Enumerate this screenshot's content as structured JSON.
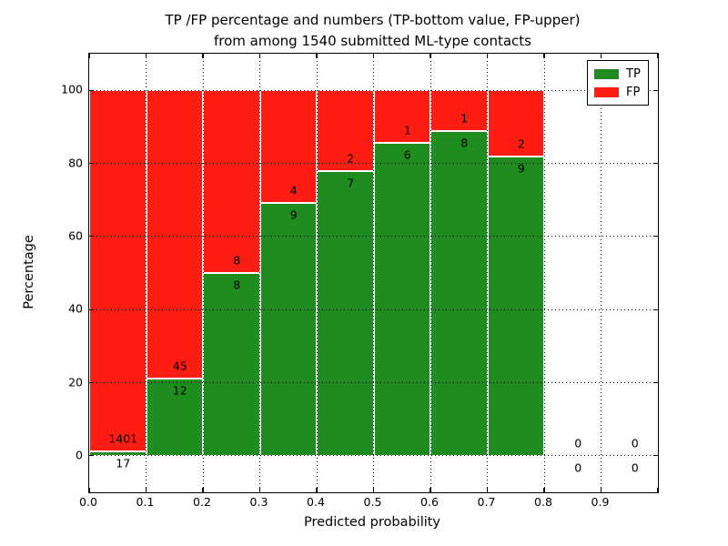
{
  "title": {
    "line1": "TP /FP percentage and numbers (TP-bottom value, FP-upper)",
    "line2": "from among 1540 submitted ML-type contacts"
  },
  "axes": {
    "ylabel": "Percentage",
    "xlabel": "Predicted probability",
    "y_ticks": [
      0,
      20,
      40,
      60,
      80,
      100
    ],
    "x_ticks": [
      {
        "value": 0.0,
        "label": "0.0"
      },
      {
        "value": 0.1,
        "label": "0.1"
      },
      {
        "value": 0.2,
        "label": "0.2"
      },
      {
        "value": 0.3,
        "label": "0.3"
      },
      {
        "value": 0.4,
        "label": "0.4"
      },
      {
        "value": 0.5,
        "label": "0.5"
      },
      {
        "value": 0.6,
        "label": "0.6"
      },
      {
        "value": 0.7,
        "label": "0.7"
      },
      {
        "value": 0.8,
        "label": "0.8"
      },
      {
        "value": 0.9,
        "label": "0.9"
      }
    ]
  },
  "legend": {
    "items": [
      {
        "label": "TP",
        "color": "#1f8c1f"
      },
      {
        "label": "FP",
        "color": "#fe1c13"
      }
    ]
  },
  "colors": {
    "tp": "#1f8c1f",
    "fp": "#fe1c13",
    "grid": "#000000",
    "text": "#000000"
  },
  "chart_data": {
    "type": "bar",
    "stacked": true,
    "normalized_to_percent": true,
    "title": "TP /FP percentage and numbers (TP-bottom value, FP-upper) from among 1540 submitted ML-type contacts",
    "xlabel": "Predicted probability",
    "ylabel": "Percentage",
    "xlim": [
      0.0,
      1.0
    ],
    "ylim": [
      -10,
      110
    ],
    "grid": "dotted, both axes, on top of bars",
    "legend_position": "upper right",
    "total_contacts": 1540,
    "series_names": [
      "TP",
      "FP"
    ],
    "bins": [
      {
        "x0": 0.0,
        "x1": 0.1,
        "tp": 17,
        "fp": 1401,
        "tp_pct": 1.2,
        "fp_pct": 98.8
      },
      {
        "x0": 0.1,
        "x1": 0.2,
        "tp": 12,
        "fp": 45,
        "tp_pct": 21.05,
        "fp_pct": 78.95
      },
      {
        "x0": 0.2,
        "x1": 0.3,
        "tp": 8,
        "fp": 8,
        "tp_pct": 50.0,
        "fp_pct": 50.0
      },
      {
        "x0": 0.3,
        "x1": 0.4,
        "tp": 9,
        "fp": 4,
        "tp_pct": 69.23,
        "fp_pct": 30.77
      },
      {
        "x0": 0.4,
        "x1": 0.5,
        "tp": 7,
        "fp": 2,
        "tp_pct": 77.78,
        "fp_pct": 22.22
      },
      {
        "x0": 0.5,
        "x1": 0.6,
        "tp": 6,
        "fp": 1,
        "tp_pct": 85.71,
        "fp_pct": 14.29
      },
      {
        "x0": 0.6,
        "x1": 0.7,
        "tp": 8,
        "fp": 1,
        "tp_pct": 88.89,
        "fp_pct": 11.11
      },
      {
        "x0": 0.7,
        "x1": 0.8,
        "tp": 9,
        "fp": 2,
        "tp_pct": 81.82,
        "fp_pct": 18.18
      },
      {
        "x0": 0.8,
        "x1": 0.9,
        "tp": 0,
        "fp": 0,
        "tp_pct": 0,
        "fp_pct": 0
      },
      {
        "x0": 0.9,
        "x1": 1.0,
        "tp": 0,
        "fp": 0,
        "tp_pct": 0,
        "fp_pct": 0
      }
    ]
  }
}
